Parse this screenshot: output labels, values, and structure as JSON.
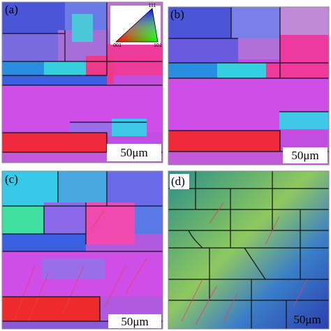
{
  "panels": [
    {
      "label": "(a)",
      "scale_bar": "50μm"
    },
    {
      "label": "(b)",
      "scale_bar": "50μm"
    },
    {
      "label": "(c)",
      "scale_bar": "50μm"
    },
    {
      "label": "(d)",
      "scale_bar": "50μm"
    }
  ],
  "ipf_legend": {
    "top": "111",
    "left": "001",
    "right": "101"
  }
}
